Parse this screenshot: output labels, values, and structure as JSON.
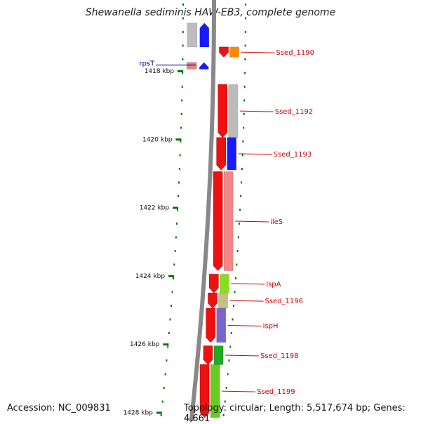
{
  "title": "Shewanella sediminis HAW-EB3, complete genome",
  "footer": {
    "accession": "Accession: NC_009831",
    "topology": "Topology: circular; Length: 5,517,674 bp; Genes: 4,661"
  },
  "scale_labels": [
    "1418 kbp",
    "1420 kbp",
    "1422 kbp",
    "1424 kbp",
    "1426 kbp",
    "1428 kbp"
  ],
  "colors": {
    "forward_gene": "#ee1111",
    "reverse_gene": "#e00000",
    "label_right": "#cc0000",
    "label_left": "#000099",
    "backbone": "#888888",
    "scale_tick": "#007700"
  },
  "genes": [
    {
      "name": "",
      "strand": "-",
      "start_kb": 1416.6,
      "end_kb": 1417.3,
      "color": "#1a1aff"
    },
    {
      "name": "rpsT",
      "strand": "-",
      "start_kb": 1417.75,
      "end_kb": 1417.95,
      "color": "#1a1aff"
    },
    {
      "name": "Ssed_1190",
      "strand": "+",
      "start_kb": 1417.3,
      "end_kb": 1417.6,
      "color": "#ff8800"
    },
    {
      "name": "Ssed_1192",
      "strand": "+",
      "start_kb": 1418.4,
      "end_kb": 1419.95,
      "color": "#bbbbbb"
    },
    {
      "name": "Ssed_1193",
      "strand": "+",
      "start_kb": 1419.95,
      "end_kb": 1420.9,
      "color": "#1a1aff"
    },
    {
      "name": "ileS",
      "strand": "+",
      "start_kb": 1420.95,
      "end_kb": 1423.85,
      "color": "#f08888"
    },
    {
      "name": "lspA",
      "strand": "+",
      "start_kb": 1423.95,
      "end_kb": 1424.5,
      "color": "#88dd22"
    },
    {
      "name": "Ssed_1196",
      "strand": "+",
      "start_kb": 1424.5,
      "end_kb": 1424.95,
      "color": "#c8c080"
    },
    {
      "name": "ispH",
      "strand": "+",
      "start_kb": 1424.95,
      "end_kb": 1425.95,
      "color": "#7766cc"
    },
    {
      "name": "Ssed_1198",
      "strand": "+",
      "start_kb": 1426.05,
      "end_kb": 1426.6,
      "color": "#22aa22"
    },
    {
      "name": "Ssed_1199",
      "strand": "+",
      "start_kb": 1426.6,
      "end_kb": 1428.15,
      "color": "#66cc22"
    }
  ]
}
